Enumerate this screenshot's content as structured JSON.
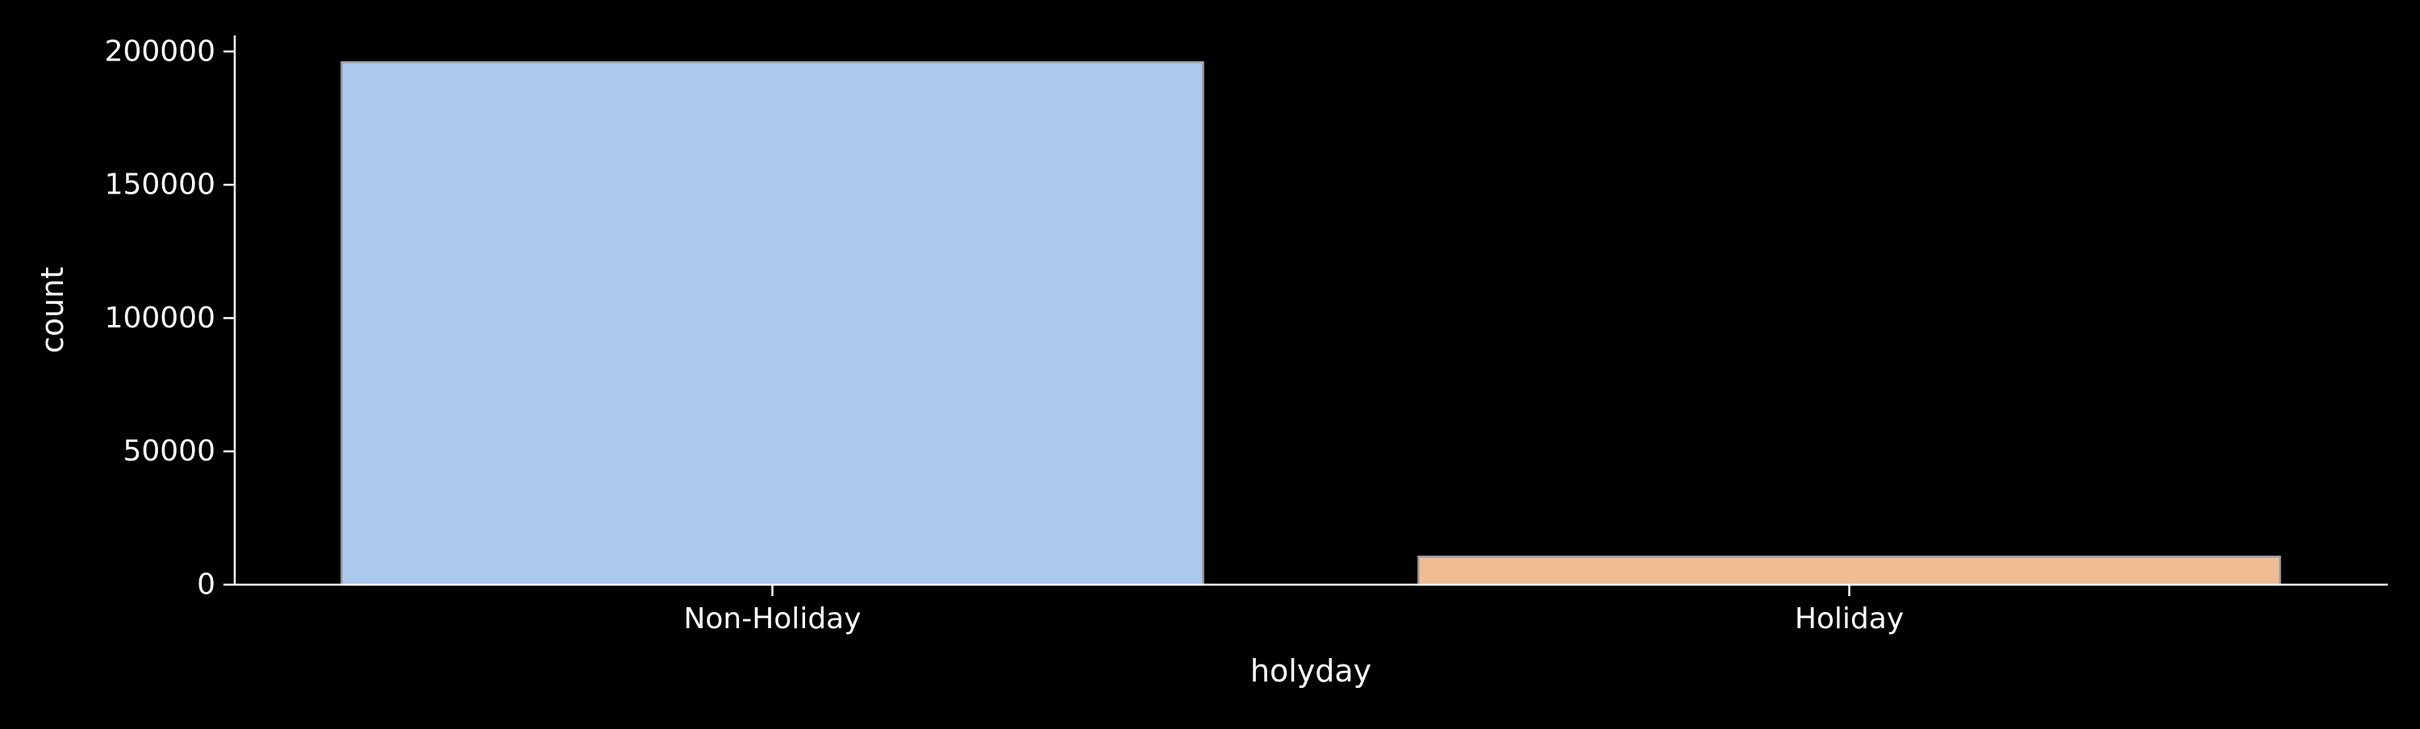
{
  "chart_data": {
    "type": "bar",
    "categories": [
      "Non-Holiday",
      "Holiday"
    ],
    "values": [
      196000,
      10500
    ],
    "xlabel": "holyday",
    "ylabel": "count",
    "ylim": [
      0,
      206000
    ],
    "yticks": [
      0,
      50000,
      100000,
      150000,
      200000
    ],
    "bar_colors": [
      "#abc9ed",
      "#f0bc94"
    ],
    "bar_edge_color": "#9e9e9e",
    "axis_color": "#ffffff",
    "text_color": "#ffffff",
    "background": "#000000",
    "grid": false,
    "legend": "none"
  }
}
